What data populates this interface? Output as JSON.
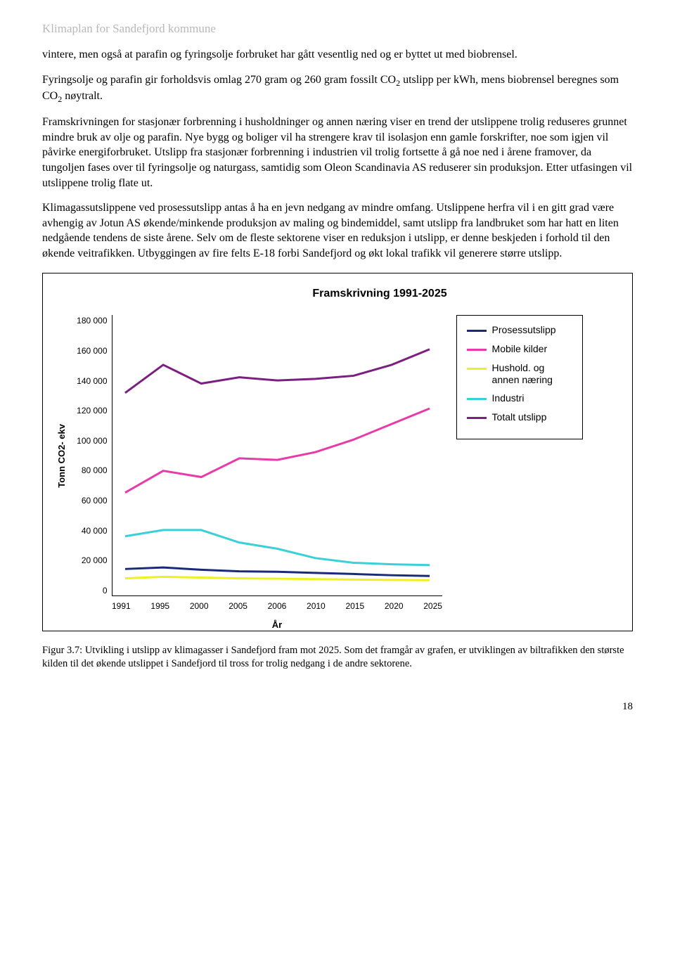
{
  "header": "Klimaplan for Sandefjord kommune",
  "paragraphs": {
    "p1": "vintere, men også at parafin og fyringsolje forbruket har gått vesentlig ned og er byttet ut med biobrensel.",
    "p2_pre": "Fyringsolje og parafin gir forholdsvis omlag 270 gram og 260 gram fossilt CO",
    "p2_mid": " utslipp per kWh, mens biobrensel beregnes som CO",
    "p2_post": " nøytralt.",
    "p3": "Framskrivningen for stasjonær forbrenning i husholdninger og annen næring viser en trend der utslippene trolig reduseres grunnet mindre bruk av olje og parafin. Nye bygg og boliger vil ha strengere krav til isolasjon enn gamle forskrifter, noe som igjen vil påvirke energiforbruket. Utslipp fra stasjonær forbrenning i industrien vil trolig fortsette å gå noe ned i årene framover, da tungoljen fases over til fyringsolje og naturgass, samtidig som Oleon Scandinavia AS reduserer sin produksjon. Etter utfasingen vil utslippene trolig flate ut.",
    "p4": "Klimagassutslippene ved prosessutslipp antas å ha en jevn nedgang av mindre omfang. Utslippene herfra vil i en gitt grad være avhengig av Jotun AS økende/minkende produksjon av maling og bindemiddel, samt utslipp fra landbruket som har hatt en liten nedgående tendens de siste årene. Selv om de fleste sektorene viser en reduksjon i utslipp, er denne beskjeden i forhold til den økende veitrafikken. Utbyggingen av fire felts E-18 forbi Sandefjord og økt lokal trafikk vil generere større utslipp."
  },
  "chart": {
    "title": "Framskrivning 1991-2025",
    "y_label": "Tonn CO2- ekv",
    "x_label": "År",
    "y_ticks": [
      "180 000",
      "160 000",
      "140 000",
      "120 000",
      "100 000",
      "80 000",
      "60 000",
      "40 000",
      "20 000",
      "0"
    ],
    "x_ticks": [
      "1991",
      "1995",
      "2000",
      "2005",
      "2006",
      "2010",
      "2015",
      "2020",
      "2025"
    ],
    "ylim": [
      0,
      180000
    ],
    "legend": [
      {
        "label": "Prosessutslipp",
        "color": "#1a2a7a"
      },
      {
        "label": "Mobile kilder",
        "color": "#e83aa8"
      },
      {
        "label": "Hushold. og annen næring",
        "color": "#f0f020"
      },
      {
        "label": "Industri",
        "color": "#3ad0d8"
      },
      {
        "label": "Totalt utslipp",
        "color": "#7b2080"
      }
    ],
    "series": {
      "prosessutslipp": {
        "color": "#1a2a7a",
        "values": [
          17000,
          18000,
          16500,
          15500,
          15200,
          14500,
          13800,
          13000,
          12500
        ]
      },
      "mobile": {
        "color": "#e83aa8",
        "values": [
          66000,
          80000,
          76000,
          88000,
          87000,
          92000,
          100000,
          110000,
          120000
        ]
      },
      "hushold": {
        "color": "#f0f020",
        "values": [
          11000,
          12000,
          11500,
          11000,
          10800,
          10500,
          10200,
          10000,
          9800
        ]
      },
      "industri": {
        "color": "#3ad0d8",
        "values": [
          38000,
          42000,
          42000,
          34000,
          30000,
          24000,
          21000,
          20000,
          19500
        ]
      },
      "totalt": {
        "color": "#7b2080",
        "values": [
          130000,
          148000,
          136000,
          140000,
          138000,
          139000,
          141000,
          148000,
          158000
        ]
      }
    },
    "line_width": 3,
    "background_color": "#ffffff"
  },
  "caption": "Figur 3.7: Utvikling i utslipp av klimagasser i Sandefjord fram mot 2025. Som det framgår av grafen, er utviklingen av biltrafikken den største kilden til det økende utslippet i Sandefjord til tross for trolig nedgang i de andre sektorene.",
  "page_number": "18"
}
